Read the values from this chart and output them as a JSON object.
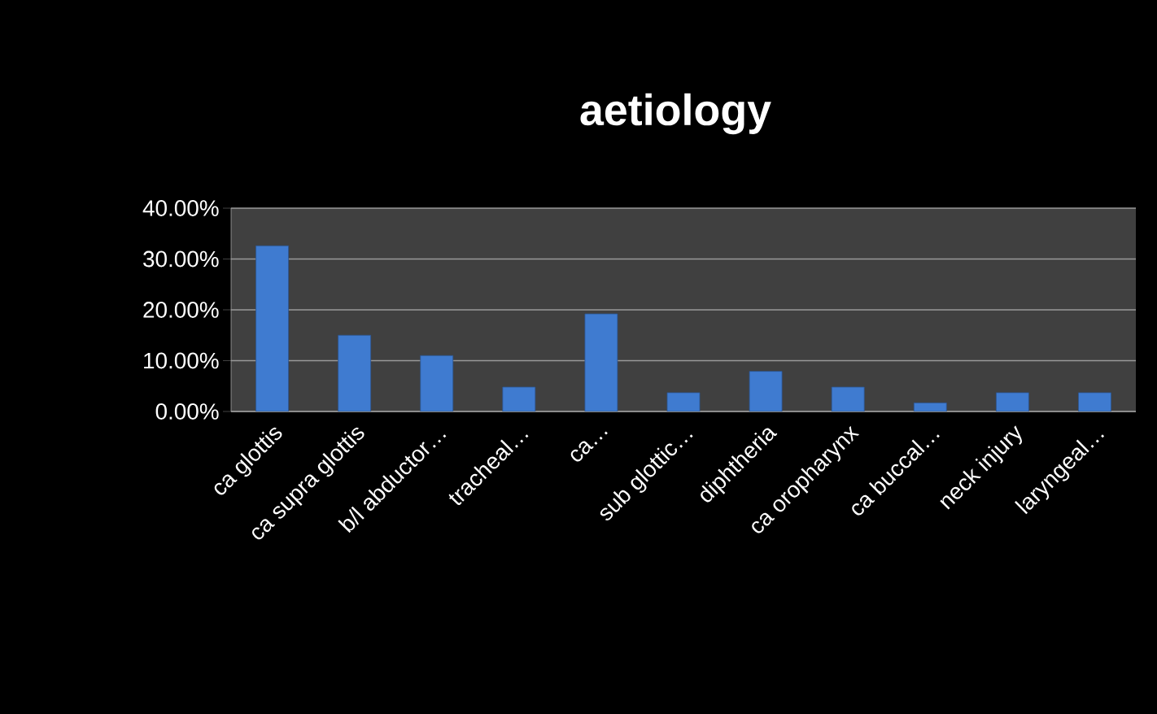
{
  "chart_data": {
    "type": "bar",
    "title": "aetiology",
    "categories": [
      "ca glottis",
      "ca supra glottis",
      "b/l abductor…",
      "tracheal…",
      "ca…",
      "sub glottic…",
      "diphtheria",
      "ca oropharynx",
      "ca buccal…",
      "neck injury",
      "laryngeal…"
    ],
    "values": [
      32.6,
      15.0,
      11.0,
      4.8,
      19.2,
      3.7,
      7.9,
      4.8,
      1.7,
      3.7,
      3.7
    ],
    "color": "#3f7bd0",
    "ylim": [
      0,
      40
    ],
    "yticks": [
      {
        "value": 0,
        "label": "0.00%"
      },
      {
        "value": 10,
        "label": "10.00%"
      },
      {
        "value": 20,
        "label": "20.00%"
      },
      {
        "value": 30,
        "label": "30.00%"
      },
      {
        "value": 40,
        "label": "40.00%"
      }
    ],
    "grid": "y"
  }
}
